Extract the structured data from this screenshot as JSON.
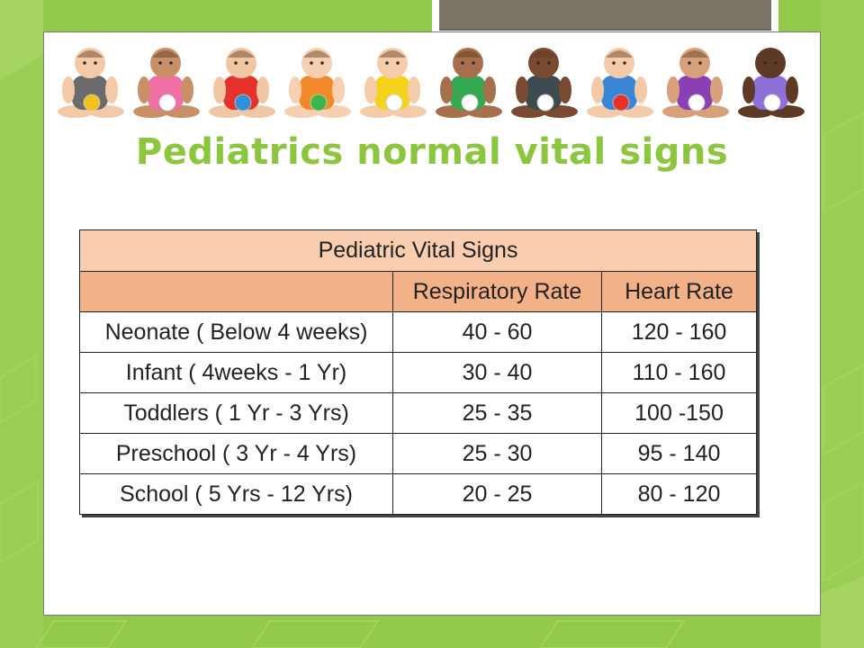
{
  "slide": {
    "title": "Pediatrics normal vital signs"
  },
  "banner": {
    "icon": "babies-photo-icon",
    "babies": [
      {
        "shirt": "#6b6b6b",
        "ball": "#f2c11d"
      },
      {
        "shirt": "#ef6fa6",
        "ball": "#ffffff"
      },
      {
        "shirt": "#e4312b",
        "ball": "#2f8fd8"
      },
      {
        "shirt": "#f28a2b",
        "ball": "#3cb54a"
      },
      {
        "shirt": "#f5d21c",
        "ball": "#ffffff"
      },
      {
        "shirt": "#35a853",
        "ball": "#ffffff"
      },
      {
        "shirt": "#3d4a4f",
        "ball": "#ffffff"
      },
      {
        "shirt": "#3a86d6",
        "ball": "#e4312b"
      },
      {
        "shirt": "#8a3fb5",
        "ball": "#ffffff"
      },
      {
        "shirt": "#8f6fd8",
        "ball": "#ffffff"
      }
    ]
  },
  "table": {
    "caption": "Pediatric Vital Signs",
    "headers": [
      "",
      "Respiratory Rate",
      "Heart Rate"
    ],
    "rows": [
      [
        "Neonate ( Below 4 weeks)",
        "40 - 60",
        "120 - 160"
      ],
      [
        "Infant ( 4weeks - 1 Yr)",
        "30 - 40",
        "110 - 160"
      ],
      [
        "Toddlers ( 1 Yr - 3 Yrs)",
        "25 - 35",
        "100 -150"
      ],
      [
        "Preschool ( 3 Yr - 4 Yrs)",
        "25 - 30",
        "95 - 140"
      ],
      [
        "School ( 5 Yrs - 12 Yrs)",
        "20 - 25",
        "80 - 120"
      ]
    ]
  },
  "colors": {
    "background_green": "#93c94a",
    "title_green": "#8cc63f",
    "caption_fill": "#f8cdb0",
    "header_fill": "#f2b187",
    "tab_brown": "#7c7567"
  }
}
